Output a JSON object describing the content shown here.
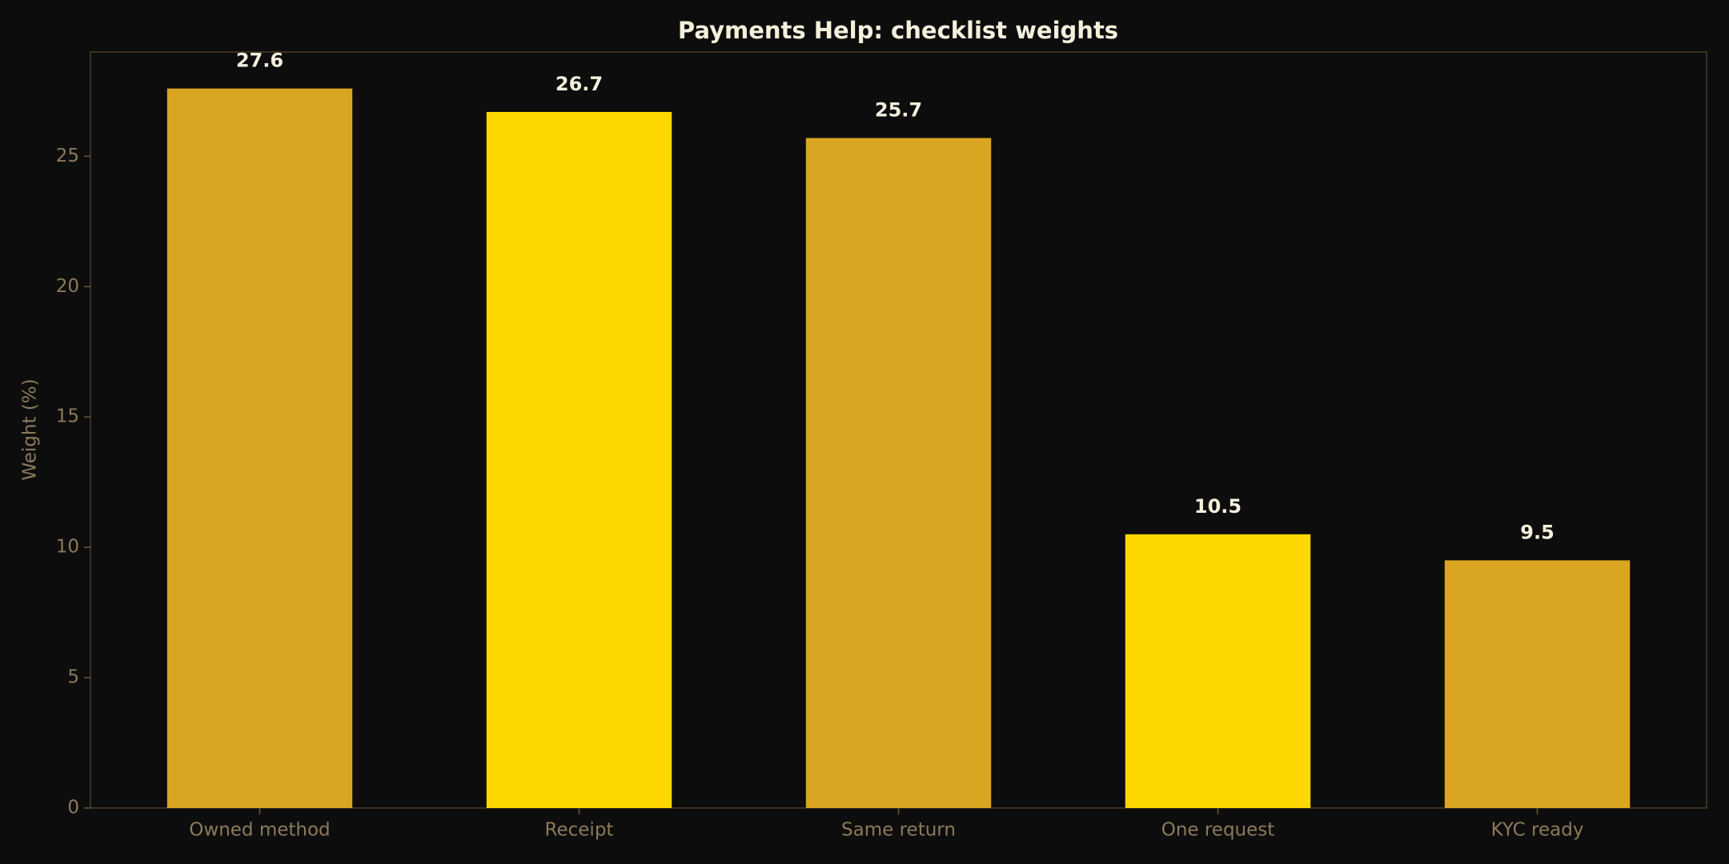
{
  "chart_data": {
    "type": "bar",
    "title": "Payments Help: checklist weights",
    "y_label": "Weight (%)",
    "categories": [
      "Owned method",
      "Receipt",
      "Same return",
      "One request",
      "KYC ready"
    ],
    "values": [
      27.6,
      26.7,
      25.7,
      10.5,
      9.5
    ],
    "colors": [
      "#daa520",
      "#ffd700",
      "#daa520",
      "#ffd700",
      "#daa520"
    ],
    "ylim": [
      0,
      29.0
    ],
    "yticks": [
      0,
      5,
      10,
      15,
      20,
      25
    ],
    "grid": false
  }
}
